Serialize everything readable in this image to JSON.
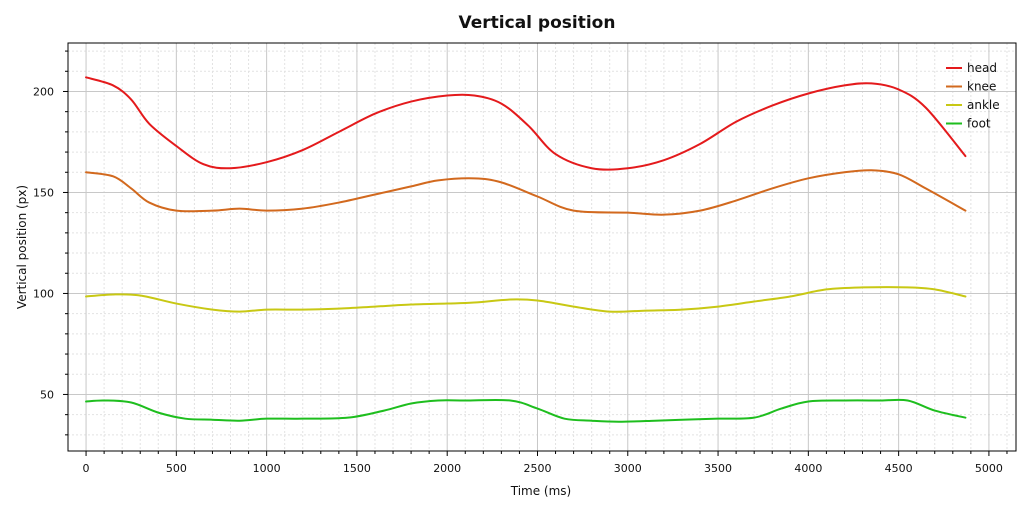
{
  "chart_data": {
    "type": "line",
    "title": "Vertical position",
    "xlabel": "Time (ms)",
    "ylabel": "Vertical position (px)",
    "xlim": [
      -100,
      5150
    ],
    "ylim": [
      22,
      224
    ],
    "xticks": [
      0,
      500,
      1000,
      1500,
      2000,
      2500,
      3000,
      3500,
      4000,
      4500,
      5000
    ],
    "yticks": [
      50,
      100,
      150,
      200
    ],
    "grid": true,
    "legend_position": "top-right",
    "series": [
      {
        "name": "head",
        "color": "#e41a1c",
        "x": [
          0,
          150,
          250,
          350,
          500,
          650,
          800,
          1000,
          1200,
          1400,
          1600,
          1800,
          2000,
          2150,
          2300,
          2450,
          2600,
          2800,
          3000,
          3200,
          3400,
          3600,
          3800,
          4000,
          4200,
          4350,
          4500,
          4650,
          4870
        ],
        "y": [
          207,
          203,
          196,
          184,
          173,
          164,
          162,
          165,
          171,
          180,
          189,
          195,
          198,
          198,
          194,
          183,
          169,
          162,
          162,
          166,
          174,
          185,
          193,
          199,
          203,
          204,
          201,
          192,
          168
        ]
      },
      {
        "name": "knee",
        "color": "#d2691e",
        "x": [
          0,
          150,
          250,
          350,
          500,
          700,
          850,
          1000,
          1200,
          1400,
          1600,
          1800,
          1950,
          2150,
          2300,
          2500,
          2700,
          3000,
          3200,
          3400,
          3600,
          3800,
          4000,
          4200,
          4350,
          4500,
          4650,
          4870
        ],
        "y": [
          160,
          158,
          152,
          145,
          141,
          141,
          142,
          141,
          142,
          145,
          149,
          153,
          156,
          157,
          155,
          148,
          141,
          140,
          139,
          141,
          146,
          152,
          157,
          160,
          161,
          159,
          152,
          141
        ]
      },
      {
        "name": "ankle",
        "color": "#c8c814",
        "x": [
          0,
          150,
          300,
          500,
          700,
          850,
          1000,
          1200,
          1400,
          1600,
          1800,
          2000,
          2150,
          2350,
          2500,
          2700,
          2900,
          3100,
          3300,
          3500,
          3700,
          3900,
          4100,
          4300,
          4550,
          4700,
          4870
        ],
        "y": [
          98.5,
          99.5,
          99,
          95,
          92,
          91,
          92,
          92,
          92.5,
          93.5,
          94.5,
          95,
          95.5,
          97,
          96.5,
          93.5,
          91,
          91.5,
          92,
          93.5,
          96,
          98.5,
          102,
          103,
          103,
          102,
          98.5
        ]
      },
      {
        "name": "foot",
        "color": "#1ebe1e",
        "x": [
          0,
          100,
          250,
          400,
          550,
          700,
          850,
          1000,
          1200,
          1450,
          1650,
          1800,
          1950,
          2100,
          2350,
          2500,
          2650,
          2800,
          2950,
          3150,
          3300,
          3500,
          3700,
          3850,
          4000,
          4200,
          4400,
          4550,
          4700,
          4870
        ],
        "y": [
          46.5,
          47,
          46,
          41,
          38,
          37.5,
          37,
          38,
          38,
          38.5,
          42,
          45.5,
          47,
          47,
          47,
          43,
          38,
          37,
          36.5,
          37,
          37.5,
          38,
          38.5,
          43,
          46.5,
          47,
          47,
          47,
          42,
          38.5
        ]
      }
    ]
  }
}
